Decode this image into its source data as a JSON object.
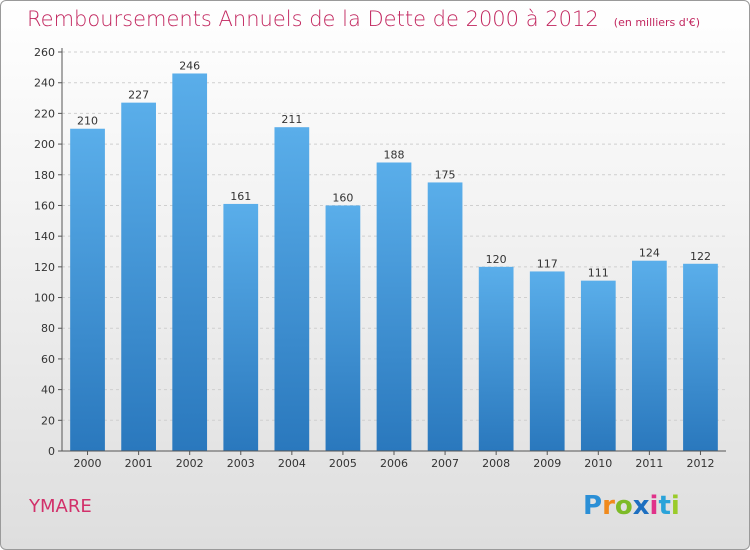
{
  "title": "Remboursements Annuels de la Dette de 2000 à 2012",
  "unit": "(en milliers d'€)",
  "commune": "YMARE",
  "logo": {
    "letters": [
      "P",
      "r",
      "o",
      "x",
      "i",
      "t",
      "i"
    ],
    "colors": [
      "#2b8fd6",
      "#f08a1c",
      "#7dbb27",
      "#1d6fc0",
      "#e0328a",
      "#2aa3d9",
      "#9acb2a"
    ]
  },
  "colors": {
    "bar": "#4a9fe0",
    "bar_dark": "#2a78bd",
    "title": "#c2275f"
  },
  "chart_data": {
    "type": "bar",
    "categories": [
      "2000",
      "2001",
      "2002",
      "2003",
      "2004",
      "2005",
      "2006",
      "2007",
      "2008",
      "2009",
      "2010",
      "2011",
      "2012"
    ],
    "values": [
      210,
      227,
      246,
      161,
      211,
      160,
      188,
      175,
      120,
      117,
      111,
      124,
      122
    ],
    "ylim": [
      0,
      260
    ],
    "yticks": [
      0,
      20,
      40,
      60,
      80,
      100,
      120,
      140,
      160,
      180,
      200,
      220,
      240,
      260
    ],
    "grid": true
  }
}
